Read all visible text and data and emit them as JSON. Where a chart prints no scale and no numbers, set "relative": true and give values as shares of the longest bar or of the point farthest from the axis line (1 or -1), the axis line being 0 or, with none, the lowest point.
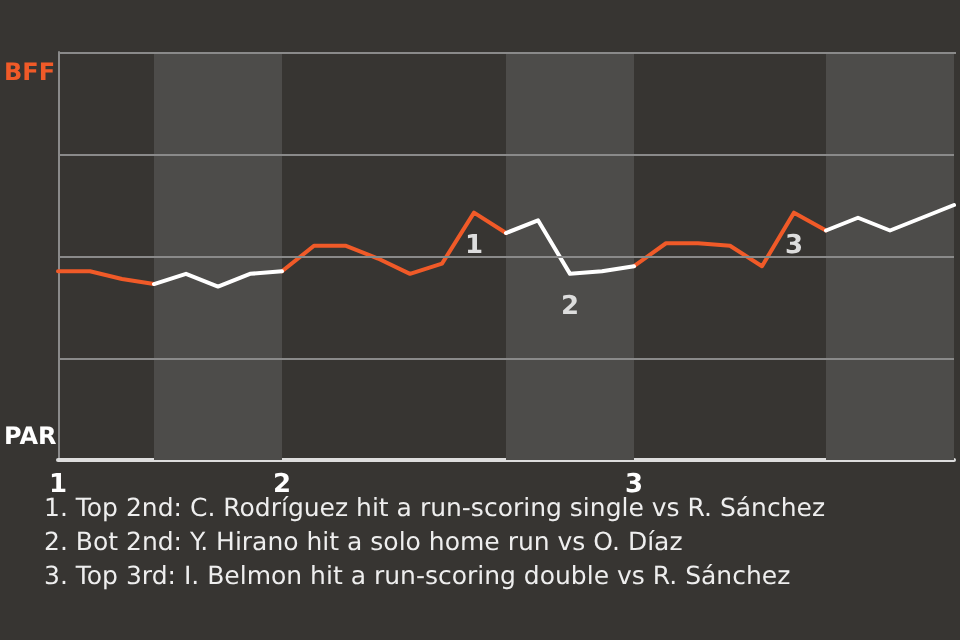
{
  "chart_data": {
    "type": "line",
    "relative": true,
    "categories": [
      "1",
      null,
      null,
      null,
      null,
      null,
      null,
      "2",
      null,
      null,
      null,
      null,
      null,
      null,
      null,
      null,
      null,
      null,
      "3",
      null,
      null,
      null,
      null,
      null,
      null,
      null,
      null,
      null,
      null
    ],
    "series": [
      {
        "color": "#f05a28",
        "values": [
          0.74,
          0.74,
          0.71,
          0.69,
          null,
          null,
          null,
          0.74,
          0.84,
          0.84,
          0.79,
          0.73,
          0.77,
          0.97,
          0.89,
          null,
          null,
          null,
          0.76,
          0.85,
          0.85,
          0.84,
          0.76,
          0.97,
          0.9,
          null,
          null,
          null,
          null
        ]
      },
      {
        "color": "#ffffff",
        "values": [
          null,
          null,
          null,
          0.69,
          0.73,
          0.68,
          0.73,
          0.74,
          null,
          null,
          null,
          null,
          null,
          null,
          0.89,
          0.94,
          0.73,
          0.74,
          0.76,
          null,
          null,
          null,
          null,
          null,
          0.9,
          0.95,
          0.9,
          0.95,
          1
        ]
      }
    ],
    "ref_lines": [
      {
        "axis": "y",
        "value": 0.4,
        "color": "#8a8a8a"
      },
      {
        "axis": "y",
        "value": 0.8,
        "color": "#8a8a8a"
      },
      {
        "axis": "y",
        "value": 1.2,
        "color": "#8a8a8a"
      }
    ],
    "marker": "none",
    "line_style": "solid",
    "annotations": [
      {
        "text": "1",
        "y": 0.97
      },
      {
        "text": "2",
        "y": 0.73
      },
      {
        "text": "3",
        "y": 0.97
      },
      "BFF",
      "PAR",
      "1. Top 2nd: C. Rodríguez hit a run-scoring single vs R. Sánchez",
      "2. Bot 2nd: Y. Hirano hit a solo home run vs O. Díaz",
      "3. Top 3rd: I. Belmon hit a run-scoring double vs R. Sánchez"
    ]
  }
}
